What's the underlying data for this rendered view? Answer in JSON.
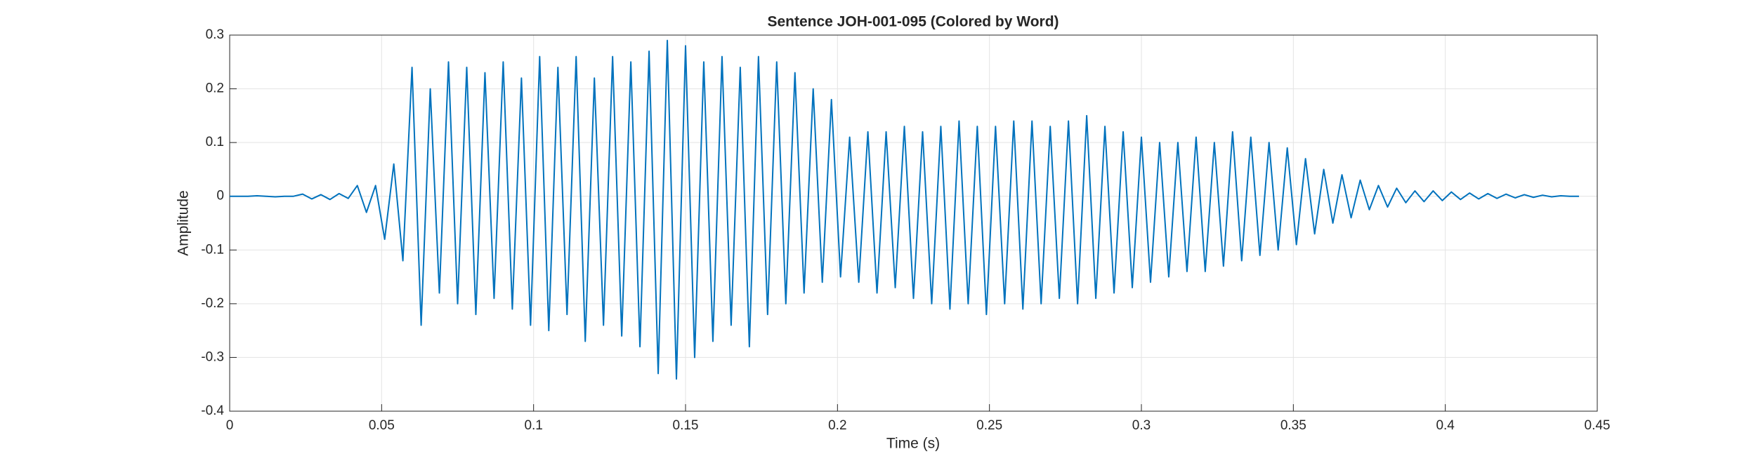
{
  "chart_data": {
    "type": "line",
    "title": "Sentence JOH-001-095 (Colored by Word)",
    "xlabel": "Time (s)",
    "ylabel": "Amplitude",
    "color": "#0072BD",
    "grid": true,
    "xlim": [
      0,
      0.45
    ],
    "ylim": [
      -0.4,
      0.3
    ],
    "xticks": [
      0,
      0.05,
      0.1,
      0.15,
      0.2,
      0.25,
      0.3,
      0.35,
      0.4,
      0.45
    ],
    "yticks": [
      -0.4,
      -0.3,
      -0.2,
      -0.1,
      0,
      0.1,
      0.2,
      0.3
    ],
    "x": [
      0,
      0.003,
      0.006,
      0.009,
      0.012,
      0.015,
      0.018,
      0.021,
      0.024,
      0.027,
      0.03,
      0.033,
      0.036,
      0.039,
      0.042,
      0.045,
      0.048,
      0.051,
      0.054,
      0.057,
      0.06,
      0.063,
      0.066,
      0.069,
      0.072,
      0.075,
      0.078,
      0.081,
      0.084,
      0.087,
      0.09,
      0.093,
      0.096,
      0.099,
      0.102,
      0.105,
      0.108,
      0.111,
      0.114,
      0.117,
      0.12,
      0.123,
      0.126,
      0.129,
      0.132,
      0.135,
      0.138,
      0.141,
      0.144,
      0.147,
      0.15,
      0.153,
      0.156,
      0.159,
      0.162,
      0.165,
      0.168,
      0.171,
      0.174,
      0.177,
      0.18,
      0.183,
      0.186,
      0.189,
      0.192,
      0.195,
      0.198,
      0.201,
      0.204,
      0.207,
      0.21,
      0.213,
      0.216,
      0.219,
      0.222,
      0.225,
      0.228,
      0.231,
      0.234,
      0.237,
      0.24,
      0.243,
      0.246,
      0.249,
      0.252,
      0.255,
      0.258,
      0.261,
      0.264,
      0.267,
      0.27,
      0.273,
      0.276,
      0.279,
      0.282,
      0.285,
      0.288,
      0.291,
      0.294,
      0.297,
      0.3,
      0.303,
      0.306,
      0.309,
      0.312,
      0.315,
      0.318,
      0.321,
      0.324,
      0.327,
      0.33,
      0.333,
      0.336,
      0.339,
      0.342,
      0.345,
      0.348,
      0.351,
      0.354,
      0.357,
      0.36,
      0.363,
      0.366,
      0.369,
      0.372,
      0.375,
      0.378,
      0.381,
      0.384,
      0.387,
      0.39,
      0.393,
      0.396,
      0.399,
      0.402,
      0.405,
      0.408,
      0.411,
      0.414,
      0.417,
      0.42,
      0.423,
      0.426,
      0.429,
      0.432,
      0.435,
      0.438,
      0.441,
      0.444
    ],
    "values": [
      0,
      0,
      0,
      0.001,
      0,
      -0.001,
      0,
      0,
      0.004,
      -0.005,
      0.003,
      -0.006,
      0.005,
      -0.004,
      0.02,
      -0.03,
      0.02,
      -0.08,
      0.06,
      -0.12,
      0.24,
      -0.24,
      0.2,
      -0.18,
      0.25,
      -0.2,
      0.24,
      -0.22,
      0.23,
      -0.19,
      0.25,
      -0.21,
      0.22,
      -0.24,
      0.26,
      -0.25,
      0.24,
      -0.22,
      0.26,
      -0.27,
      0.22,
      -0.24,
      0.26,
      -0.26,
      0.25,
      -0.28,
      0.27,
      -0.33,
      0.29,
      -0.34,
      0.28,
      -0.3,
      0.25,
      -0.27,
      0.26,
      -0.24,
      0.24,
      -0.28,
      0.26,
      -0.22,
      0.25,
      -0.2,
      0.23,
      -0.18,
      0.2,
      -0.16,
      0.18,
      -0.15,
      0.11,
      -0.16,
      0.12,
      -0.18,
      0.12,
      -0.17,
      0.13,
      -0.19,
      0.12,
      -0.2,
      0.13,
      -0.21,
      0.14,
      -0.2,
      0.13,
      -0.22,
      0.13,
      -0.2,
      0.14,
      -0.21,
      0.14,
      -0.2,
      0.13,
      -0.19,
      0.14,
      -0.2,
      0.15,
      -0.19,
      0.13,
      -0.18,
      0.12,
      -0.17,
      0.11,
      -0.16,
      0.1,
      -0.15,
      0.1,
      -0.14,
      0.11,
      -0.14,
      0.1,
      -0.13,
      0.12,
      -0.12,
      0.11,
      -0.11,
      0.1,
      -0.1,
      0.09,
      -0.09,
      0.07,
      -0.07,
      0.05,
      -0.05,
      0.04,
      -0.04,
      0.03,
      -0.025,
      0.02,
      -0.02,
      0.015,
      -0.012,
      0.01,
      -0.01,
      0.01,
      -0.008,
      0.008,
      -0.006,
      0.006,
      -0.005,
      0.005,
      -0.004,
      0.004,
      -0.003,
      0.003,
      -0.002,
      0.002,
      -0.001,
      0.001,
      0,
      0
    ]
  }
}
